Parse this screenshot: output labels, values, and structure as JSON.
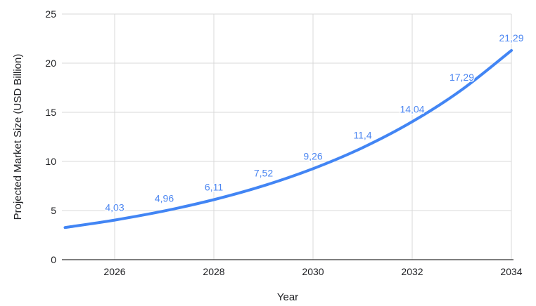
{
  "chart_data": {
    "type": "line",
    "title": "",
    "xlabel": "Year",
    "ylabel": "Projected Market Size (USD Billion)",
    "x": [
      2025,
      2026,
      2027,
      2028,
      2029,
      2030,
      2031,
      2032,
      2033,
      2034
    ],
    "series": [
      {
        "name": "Projected Market Size (USD Billion)",
        "values": [
          3.27,
          4.03,
          4.96,
          6.11,
          7.52,
          9.26,
          11.4,
          14.04,
          17.29,
          21.29
        ],
        "point_labels": [
          "",
          "4,03",
          "4,96",
          "6,11",
          "7,52",
          "9,26",
          "11,4",
          "14,04",
          "17,29",
          "21,29"
        ]
      }
    ],
    "xlim": [
      2025,
      2034
    ],
    "ylim": [
      0,
      25
    ],
    "x_ticks": [
      2026,
      2028,
      2030,
      2032,
      2034
    ],
    "y_ticks": [
      0,
      5,
      10,
      15,
      20,
      25
    ],
    "grid": true,
    "legend_position": "none",
    "line_style": "smooth",
    "colors": {
      "line": "#4285f4",
      "data_label": "#4d87f1",
      "grid": "#d9d9d9",
      "axis_line": "#333333",
      "tick_label": "#202124",
      "background": "#ffffff"
    }
  }
}
